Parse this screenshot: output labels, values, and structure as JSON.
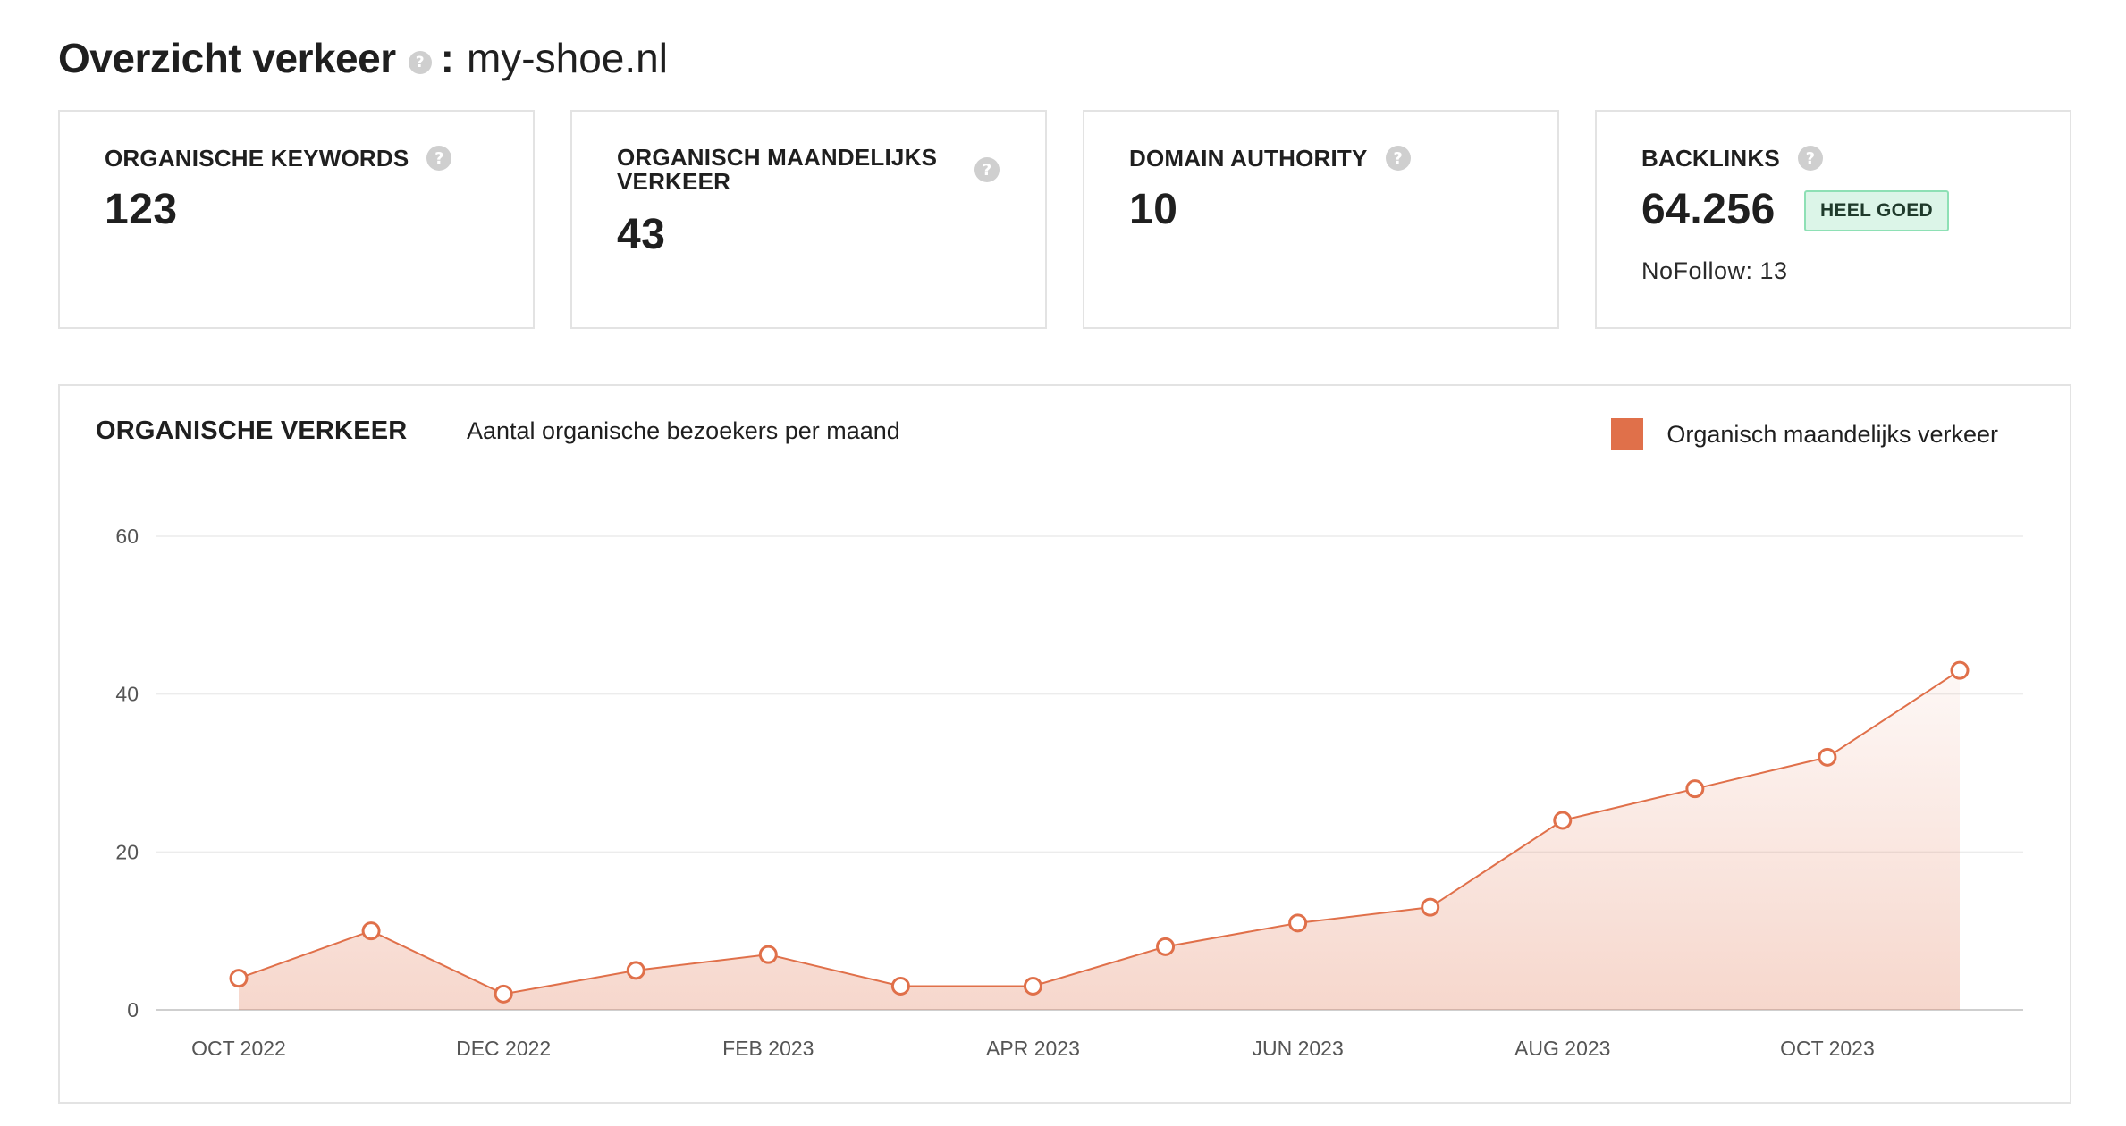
{
  "header": {
    "title": "Overzicht verkeer",
    "help": "?",
    "separator": ":",
    "domain": "my-shoe.nl"
  },
  "cards": [
    {
      "label": "ORGANISCHE KEYWORDS",
      "value": "123",
      "help": "?"
    },
    {
      "label": "ORGANISCH MAANDELIJKS VERKEER",
      "value": "43",
      "help": "?"
    },
    {
      "label": "DOMAIN AUTHORITY",
      "value": "10",
      "help": "?"
    },
    {
      "label": "BACKLINKS",
      "value": "64.256",
      "help": "?",
      "badge": "HEEL GOED",
      "nofollow": "NoFollow: 13"
    }
  ],
  "colors": {
    "accent": "#e0704a",
    "badge_bg": "#dcf5e8",
    "badge_border": "#8ee0b5"
  },
  "chart_data": {
    "type": "area",
    "title": "ORGANISCHE VERKEER",
    "subtitle": "Aantal organische bezoekers per maand",
    "x": [
      "OCT 2022",
      "NOV 2022",
      "DEC 2022",
      "JAN 2023",
      "FEB 2023",
      "MAR 2023",
      "APR 2023",
      "MAY 2023",
      "JUN 2023",
      "JUL 2023",
      "AUG 2023",
      "SEP 2023",
      "OCT 2023",
      "NOV 2023"
    ],
    "x_tick_labels": [
      "OCT 2022",
      "DEC 2022",
      "FEB 2023",
      "APR 2023",
      "JUN 2023",
      "AUG 2023",
      "OCT 2023"
    ],
    "series": [
      {
        "name": "Organisch maandelijks verkeer",
        "values": [
          4,
          10,
          2,
          5,
          7,
          3,
          3,
          8,
          11,
          13,
          24,
          28,
          32,
          43
        ]
      }
    ],
    "ylim": [
      0,
      60
    ],
    "yticks": [
      0,
      20,
      40,
      60
    ],
    "grid": true,
    "legend": "top-right"
  }
}
